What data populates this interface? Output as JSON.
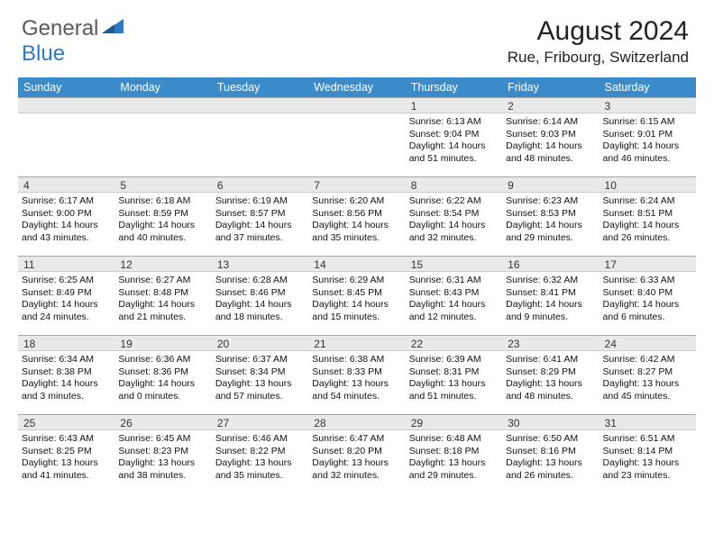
{
  "logo": {
    "general": "General",
    "blue": "Blue"
  },
  "title": "August 2024",
  "location": "Rue, Fribourg, Switzerland",
  "colors": {
    "header_bg": "#3b8bca",
    "header_text": "#ffffff",
    "daybar_bg": "#e9e9e9",
    "daybar_border": "#a7a7a7",
    "logo_blue": "#2f7ac0",
    "logo_gray": "#5a5a5a",
    "body_bg": "#ffffff"
  },
  "weekdays": [
    "Sunday",
    "Monday",
    "Tuesday",
    "Wednesday",
    "Thursday",
    "Friday",
    "Saturday"
  ],
  "weeks": [
    [
      null,
      null,
      null,
      null,
      {
        "n": "1",
        "sr": "Sunrise: 6:13 AM",
        "ss": "Sunset: 9:04 PM",
        "dl": "Daylight: 14 hours and 51 minutes."
      },
      {
        "n": "2",
        "sr": "Sunrise: 6:14 AM",
        "ss": "Sunset: 9:03 PM",
        "dl": "Daylight: 14 hours and 48 minutes."
      },
      {
        "n": "3",
        "sr": "Sunrise: 6:15 AM",
        "ss": "Sunset: 9:01 PM",
        "dl": "Daylight: 14 hours and 46 minutes."
      }
    ],
    [
      {
        "n": "4",
        "sr": "Sunrise: 6:17 AM",
        "ss": "Sunset: 9:00 PM",
        "dl": "Daylight: 14 hours and 43 minutes."
      },
      {
        "n": "5",
        "sr": "Sunrise: 6:18 AM",
        "ss": "Sunset: 8:59 PM",
        "dl": "Daylight: 14 hours and 40 minutes."
      },
      {
        "n": "6",
        "sr": "Sunrise: 6:19 AM",
        "ss": "Sunset: 8:57 PM",
        "dl": "Daylight: 14 hours and 37 minutes."
      },
      {
        "n": "7",
        "sr": "Sunrise: 6:20 AM",
        "ss": "Sunset: 8:56 PM",
        "dl": "Daylight: 14 hours and 35 minutes."
      },
      {
        "n": "8",
        "sr": "Sunrise: 6:22 AM",
        "ss": "Sunset: 8:54 PM",
        "dl": "Daylight: 14 hours and 32 minutes."
      },
      {
        "n": "9",
        "sr": "Sunrise: 6:23 AM",
        "ss": "Sunset: 8:53 PM",
        "dl": "Daylight: 14 hours and 29 minutes."
      },
      {
        "n": "10",
        "sr": "Sunrise: 6:24 AM",
        "ss": "Sunset: 8:51 PM",
        "dl": "Daylight: 14 hours and 26 minutes."
      }
    ],
    [
      {
        "n": "11",
        "sr": "Sunrise: 6:25 AM",
        "ss": "Sunset: 8:49 PM",
        "dl": "Daylight: 14 hours and 24 minutes."
      },
      {
        "n": "12",
        "sr": "Sunrise: 6:27 AM",
        "ss": "Sunset: 8:48 PM",
        "dl": "Daylight: 14 hours and 21 minutes."
      },
      {
        "n": "13",
        "sr": "Sunrise: 6:28 AM",
        "ss": "Sunset: 8:46 PM",
        "dl": "Daylight: 14 hours and 18 minutes."
      },
      {
        "n": "14",
        "sr": "Sunrise: 6:29 AM",
        "ss": "Sunset: 8:45 PM",
        "dl": "Daylight: 14 hours and 15 minutes."
      },
      {
        "n": "15",
        "sr": "Sunrise: 6:31 AM",
        "ss": "Sunset: 8:43 PM",
        "dl": "Daylight: 14 hours and 12 minutes."
      },
      {
        "n": "16",
        "sr": "Sunrise: 6:32 AM",
        "ss": "Sunset: 8:41 PM",
        "dl": "Daylight: 14 hours and 9 minutes."
      },
      {
        "n": "17",
        "sr": "Sunrise: 6:33 AM",
        "ss": "Sunset: 8:40 PM",
        "dl": "Daylight: 14 hours and 6 minutes."
      }
    ],
    [
      {
        "n": "18",
        "sr": "Sunrise: 6:34 AM",
        "ss": "Sunset: 8:38 PM",
        "dl": "Daylight: 14 hours and 3 minutes."
      },
      {
        "n": "19",
        "sr": "Sunrise: 6:36 AM",
        "ss": "Sunset: 8:36 PM",
        "dl": "Daylight: 14 hours and 0 minutes."
      },
      {
        "n": "20",
        "sr": "Sunrise: 6:37 AM",
        "ss": "Sunset: 8:34 PM",
        "dl": "Daylight: 13 hours and 57 minutes."
      },
      {
        "n": "21",
        "sr": "Sunrise: 6:38 AM",
        "ss": "Sunset: 8:33 PM",
        "dl": "Daylight: 13 hours and 54 minutes."
      },
      {
        "n": "22",
        "sr": "Sunrise: 6:39 AM",
        "ss": "Sunset: 8:31 PM",
        "dl": "Daylight: 13 hours and 51 minutes."
      },
      {
        "n": "23",
        "sr": "Sunrise: 6:41 AM",
        "ss": "Sunset: 8:29 PM",
        "dl": "Daylight: 13 hours and 48 minutes."
      },
      {
        "n": "24",
        "sr": "Sunrise: 6:42 AM",
        "ss": "Sunset: 8:27 PM",
        "dl": "Daylight: 13 hours and 45 minutes."
      }
    ],
    [
      {
        "n": "25",
        "sr": "Sunrise: 6:43 AM",
        "ss": "Sunset: 8:25 PM",
        "dl": "Daylight: 13 hours and 41 minutes."
      },
      {
        "n": "26",
        "sr": "Sunrise: 6:45 AM",
        "ss": "Sunset: 8:23 PM",
        "dl": "Daylight: 13 hours and 38 minutes."
      },
      {
        "n": "27",
        "sr": "Sunrise: 6:46 AM",
        "ss": "Sunset: 8:22 PM",
        "dl": "Daylight: 13 hours and 35 minutes."
      },
      {
        "n": "28",
        "sr": "Sunrise: 6:47 AM",
        "ss": "Sunset: 8:20 PM",
        "dl": "Daylight: 13 hours and 32 minutes."
      },
      {
        "n": "29",
        "sr": "Sunrise: 6:48 AM",
        "ss": "Sunset: 8:18 PM",
        "dl": "Daylight: 13 hours and 29 minutes."
      },
      {
        "n": "30",
        "sr": "Sunrise: 6:50 AM",
        "ss": "Sunset: 8:16 PM",
        "dl": "Daylight: 13 hours and 26 minutes."
      },
      {
        "n": "31",
        "sr": "Sunrise: 6:51 AM",
        "ss": "Sunset: 8:14 PM",
        "dl": "Daylight: 13 hours and 23 minutes."
      }
    ]
  ]
}
